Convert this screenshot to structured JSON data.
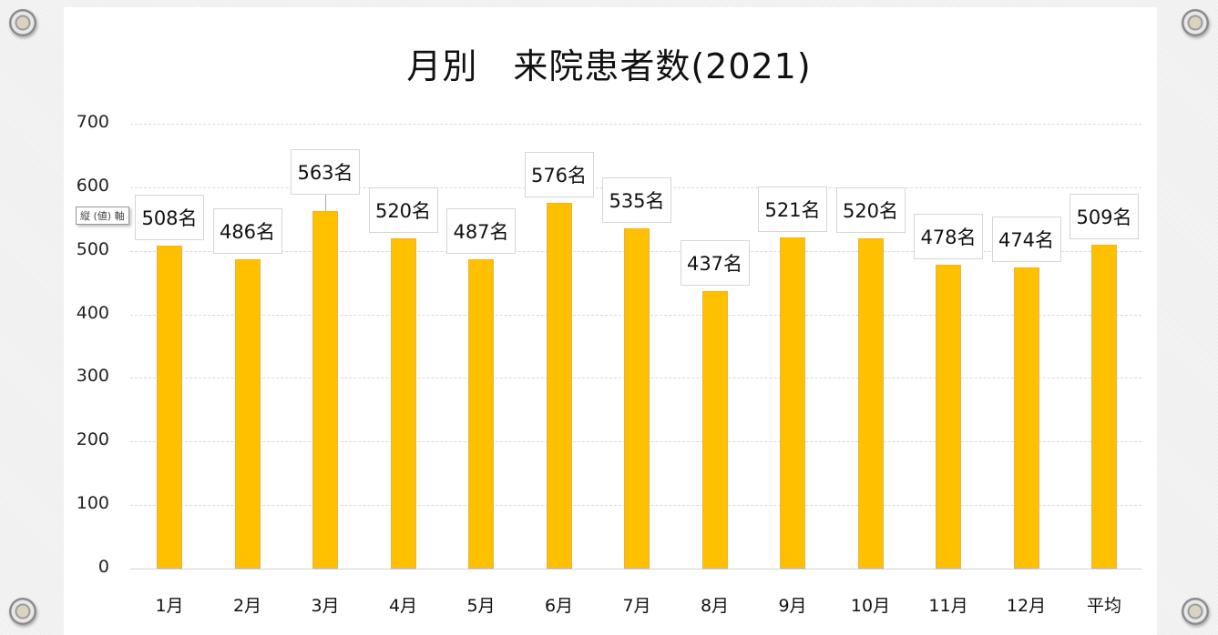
{
  "chart_data": {
    "type": "bar",
    "title": "月別　来院患者数(2021)",
    "xlabel": "",
    "ylabel": "",
    "ylim": [
      0,
      700
    ],
    "yticks": [
      0,
      100,
      200,
      300,
      400,
      500,
      600,
      700
    ],
    "grid": true,
    "legend": "none",
    "categories": [
      "1月",
      "2月",
      "3月",
      "4月",
      "5月",
      "6月",
      "7月",
      "8月",
      "9月",
      "10月",
      "11月",
      "12月",
      "平均"
    ],
    "values": [
      508,
      486,
      563,
      520,
      487,
      576,
      535,
      437,
      521,
      520,
      478,
      474,
      509
    ],
    "data_labels": [
      "508名",
      "486名",
      "563名",
      "520名",
      "487名",
      "576名",
      "535名",
      "437名",
      "521名",
      "520名",
      "478名",
      "474名",
      "509名"
    ],
    "bar_color": "#ffc000"
  },
  "tooltip": "縦 (値) 軸"
}
